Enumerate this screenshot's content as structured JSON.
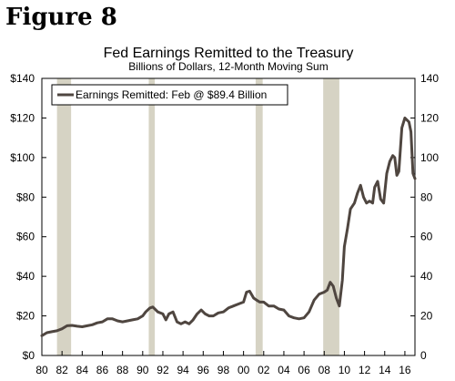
{
  "figure_label": "Figure 8",
  "chart_data": {
    "type": "line",
    "title": "Fed Earnings Remitted to the Treasury",
    "subtitle": "Billions of Dollars, 12-Month Moving Sum",
    "xlabel": "",
    "ylabel": "",
    "xlim": [
      1980,
      2017
    ],
    "ylim": [
      0,
      140
    ],
    "x_ticks": [
      {
        "value": 1980,
        "label": "80"
      },
      {
        "value": 1982,
        "label": "82"
      },
      {
        "value": 1984,
        "label": "84"
      },
      {
        "value": 1986,
        "label": "86"
      },
      {
        "value": 1988,
        "label": "88"
      },
      {
        "value": 1990,
        "label": "90"
      },
      {
        "value": 1992,
        "label": "92"
      },
      {
        "value": 1994,
        "label": "94"
      },
      {
        "value": 1996,
        "label": "96"
      },
      {
        "value": 1998,
        "label": "98"
      },
      {
        "value": 2000,
        "label": "00"
      },
      {
        "value": 2002,
        "label": "02"
      },
      {
        "value": 2004,
        "label": "04"
      },
      {
        "value": 2006,
        "label": "06"
      },
      {
        "value": 2008,
        "label": "08"
      },
      {
        "value": 2010,
        "label": "10"
      },
      {
        "value": 2012,
        "label": "12"
      },
      {
        "value": 2014,
        "label": "14"
      },
      {
        "value": 2016,
        "label": "16"
      }
    ],
    "y_ticks": [
      {
        "value": 0,
        "label": "$0"
      },
      {
        "value": 20,
        "label": "$20"
      },
      {
        "value": 40,
        "label": "$40"
      },
      {
        "value": 60,
        "label": "$60"
      },
      {
        "value": 80,
        "label": "$80"
      },
      {
        "value": 100,
        "label": "$100"
      },
      {
        "value": 120,
        "label": "$120"
      },
      {
        "value": 140,
        "label": "$140"
      }
    ],
    "y_ticks_right": [
      {
        "value": 0,
        "label": "0"
      },
      {
        "value": 20,
        "label": "20"
      },
      {
        "value": 40,
        "label": "40"
      },
      {
        "value": 60,
        "label": "60"
      },
      {
        "value": 80,
        "label": "80"
      },
      {
        "value": 100,
        "label": "100"
      },
      {
        "value": 120,
        "label": "120"
      },
      {
        "value": 140,
        "label": "140"
      }
    ],
    "grid": false,
    "legend": {
      "position": "top-left",
      "entries": [
        "Earnings Remitted: Feb @ $89.4 Billion"
      ]
    },
    "recessions": [
      [
        1981.5,
        1982.9
      ],
      [
        1990.6,
        1991.2
      ],
      [
        2001.2,
        2001.9
      ],
      [
        2007.9,
        2009.5
      ]
    ],
    "colors": {
      "line": "#4f4640",
      "recession": "#d6d3c4",
      "axis": "#000000"
    },
    "series": [
      {
        "x": [
          1980.0,
          1980.5,
          1981.0,
          1981.5,
          1982.0,
          1982.5,
          1983.0,
          1983.5,
          1984.0,
          1984.5,
          1985.0,
          1985.5,
          1986.0,
          1986.5,
          1987.0,
          1987.5,
          1988.0,
          1988.5,
          1989.0,
          1989.5,
          1990.0,
          1990.3,
          1990.7,
          1991.0,
          1991.5,
          1992.0,
          1992.3,
          1992.6,
          1993.0,
          1993.4,
          1993.8,
          1994.2,
          1994.6,
          1995.0,
          1995.4,
          1995.8,
          1996.2,
          1996.6,
          1997.0,
          1997.5,
          1998.0,
          1998.5,
          1999.0,
          1999.5,
          2000.0,
          2000.3,
          2000.6,
          2001.0,
          2001.3,
          2001.6,
          2002.0,
          2002.5,
          2003.0,
          2003.5,
          2004.0,
          2004.5,
          2005.0,
          2005.5,
          2006.0,
          2006.5,
          2007.0,
          2007.5,
          2008.0,
          2008.3,
          2008.6,
          2008.9,
          2009.2,
          2009.5,
          2009.8,
          2010.0,
          2010.3,
          2010.6,
          2011.0,
          2011.3,
          2011.6,
          2011.9,
          2012.2,
          2012.5,
          2012.8,
          2013.0,
          2013.3,
          2013.6,
          2013.9,
          2014.2,
          2014.5,
          2014.8,
          2015.0,
          2015.2,
          2015.4,
          2015.7,
          2016.0,
          2016.2,
          2016.4,
          2016.6,
          2016.8,
          2017.0
        ],
        "y": [
          10,
          11.5,
          12,
          12.5,
          13.5,
          15,
          15.2,
          14.8,
          14.5,
          15,
          15.5,
          16.5,
          17,
          18.5,
          18.5,
          17.5,
          17,
          17.5,
          18,
          18.5,
          20,
          22,
          24,
          24.5,
          22,
          21,
          18,
          21,
          22,
          17,
          16,
          17,
          16,
          18,
          21,
          23,
          21,
          20,
          20,
          21.5,
          22,
          24,
          25,
          26,
          27,
          32,
          32.5,
          29,
          28,
          27,
          27,
          25,
          25,
          23.5,
          23,
          20,
          19,
          18.5,
          19,
          22,
          28,
          31,
          32,
          33,
          37,
          35,
          29,
          25,
          38,
          55,
          64,
          74,
          77,
          82,
          86,
          80,
          77,
          78,
          77,
          85,
          88,
          79,
          77,
          92,
          98,
          101,
          100,
          91,
          93,
          115,
          120,
          119,
          118,
          113,
          92,
          89.4
        ]
      }
    ]
  }
}
